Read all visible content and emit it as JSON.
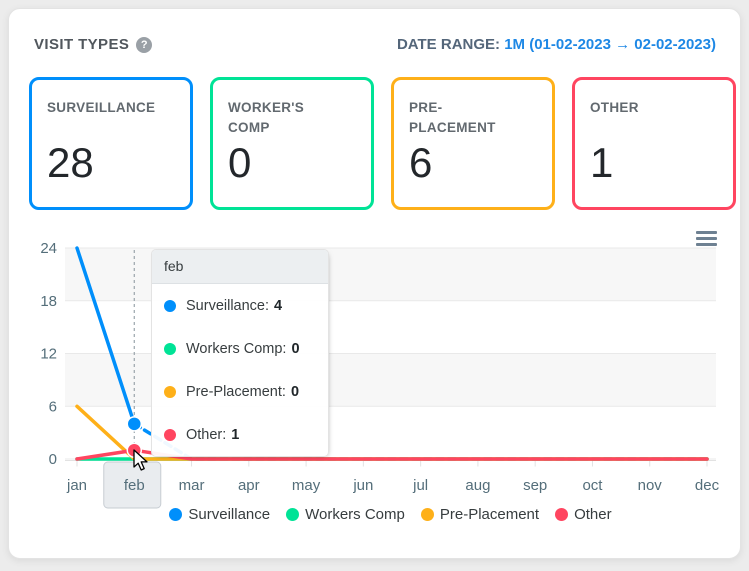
{
  "header": {
    "title": "VISIT TYPES",
    "help_icon_glyph": "?",
    "date_range_label": "DATE RANGE:",
    "date_range_value": "1M (01-02-2023 → 02-02-2023)",
    "date_range_value_color": "#1e88e5"
  },
  "cards": [
    {
      "label": "SURVEILLANCE",
      "value": "28",
      "color": "#008FFB"
    },
    {
      "label": "WORKER'S COMP",
      "value": "0",
      "color": "#00E396"
    },
    {
      "label": "PRE-PLACEMENT",
      "value": "6",
      "color": "#FEB019"
    },
    {
      "label": "OTHER",
      "value": "1",
      "color": "#FF4560"
    }
  ],
  "chart_data": {
    "type": "line",
    "title": "",
    "categories": [
      "jan",
      "feb",
      "mar",
      "apr",
      "may",
      "jun",
      "jul",
      "aug",
      "sep",
      "oct",
      "nov",
      "dec"
    ],
    "series": [
      {
        "name": "Surveillance",
        "color": "#008FFB",
        "values": [
          24,
          4,
          0,
          0,
          0,
          0,
          0,
          0,
          0,
          0,
          0,
          0
        ],
        "dashed_after_index": 1
      },
      {
        "name": "Workers Comp",
        "color": "#00E396",
        "values": [
          0,
          0,
          0,
          0,
          0,
          0,
          0,
          0,
          0,
          0,
          0,
          0
        ]
      },
      {
        "name": "Pre-Placement",
        "color": "#FEB019",
        "values": [
          6,
          0,
          0,
          0,
          0,
          0,
          0,
          0,
          0,
          0,
          0,
          0
        ]
      },
      {
        "name": "Other",
        "color": "#FF4560",
        "values": [
          0,
          1,
          0,
          0,
          0,
          0,
          0,
          0,
          0,
          0,
          0,
          0
        ]
      }
    ],
    "ylim": [
      0,
      24
    ],
    "yticks": [
      0,
      6,
      12,
      18,
      24
    ],
    "grid": "horizontal-lines-with-alternating-row-stripes",
    "legend_position": "bottom",
    "hovered_category": "feb",
    "hovered_index": 1,
    "hover_markers": [
      {
        "series_index": 0,
        "value": 4
      },
      {
        "series_index": 3,
        "value": 1
      }
    ]
  },
  "tooltip": {
    "title": "feb",
    "rows": [
      {
        "label": "Surveillance:",
        "value": "4"
      },
      {
        "label": "Workers Comp:",
        "value": "0"
      },
      {
        "label": "Pre-Placement:",
        "value": "0"
      },
      {
        "label": "Other:",
        "value": "1"
      }
    ]
  }
}
